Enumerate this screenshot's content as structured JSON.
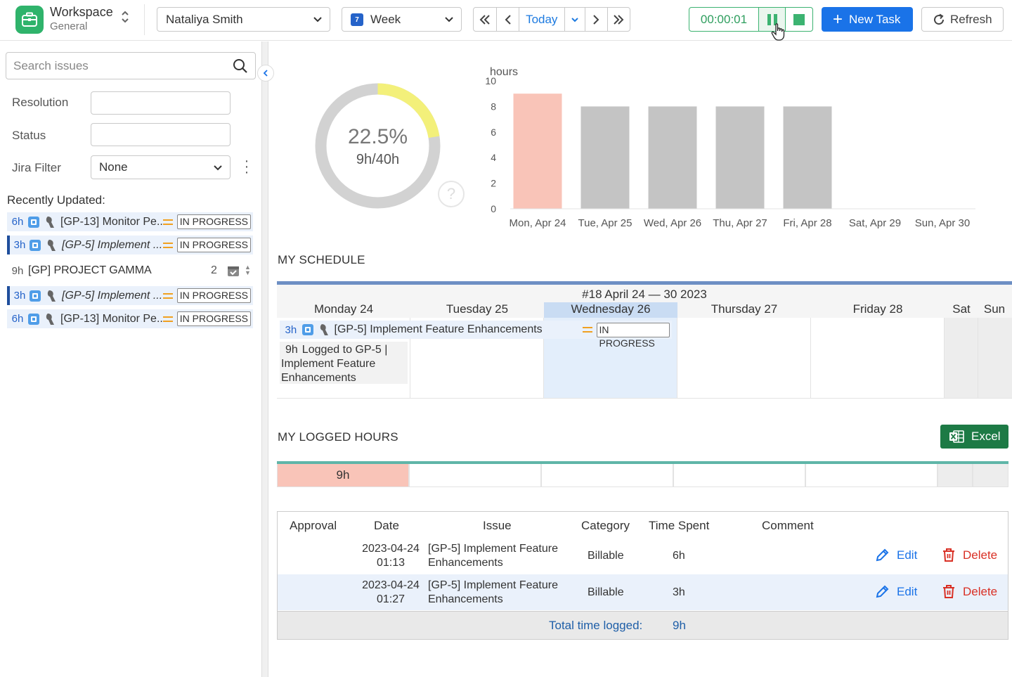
{
  "workspace": {
    "title": "Workspace",
    "subtitle": "General"
  },
  "toolbar": {
    "user": "Nataliya Smith",
    "period": "Week",
    "period_icon_day": "7",
    "today": "Today",
    "timer": "00:00:01",
    "new_task": "New Task",
    "refresh": "Refresh"
  },
  "sidebar": {
    "search_placeholder": "Search issues",
    "filters": {
      "resolution_label": "Resolution",
      "status_label": "Status",
      "jira_filter_label": "Jira Filter",
      "jira_filter_value": "None"
    },
    "recent_title": "Recently Updated:",
    "items": [
      {
        "duration": "6h",
        "name": "[GP-13] Monitor Pe...",
        "status": "IN PROGRESS",
        "italic": false,
        "active": false
      },
      {
        "duration": "3h",
        "name": "[GP-5] Implement ...",
        "status": "IN PROGRESS",
        "italic": true,
        "active": true
      },
      {
        "duration": "3h",
        "name": "[GP-5] Implement ...",
        "status": "IN PROGRESS",
        "italic": true,
        "active": true
      },
      {
        "duration": "6h",
        "name": "[GP-13] Monitor Pe...",
        "status": "IN PROGRESS",
        "italic": false,
        "active": false
      }
    ],
    "project": {
      "duration": "9h",
      "name": "[GP] PROJECT GAMMA",
      "count": "2"
    }
  },
  "summary": {
    "percent": "22.5%",
    "ratio": "9h/40h",
    "fraction": 0.225,
    "help": "?"
  },
  "chart_data": {
    "type": "bar",
    "ylabel": "hours",
    "ylim": [
      0,
      10
    ],
    "yticks": [
      0,
      2,
      4,
      6,
      8,
      10
    ],
    "categories": [
      "Mon, Apr 24",
      "Tue, Apr 25",
      "Wed, Apr 26",
      "Thu, Apr 27",
      "Fri, Apr 28",
      "Sat, Apr 29",
      "Sun, Apr 30"
    ],
    "values": [
      9,
      8,
      8,
      8,
      8,
      0,
      0
    ],
    "colors": [
      "#f9c4b8",
      "#c4c4c4",
      "#c4c4c4",
      "#c4c4c4",
      "#c4c4c4",
      "#c4c4c4",
      "#c4c4c4"
    ]
  },
  "schedule": {
    "title": "MY SCHEDULE",
    "week_label": "#18 April 24 — 30 2023",
    "days": [
      "Monday 24",
      "Tuesday 25",
      "Wednesday 26",
      "Thursday 27",
      "Friday 28",
      "Sat",
      "Sun"
    ],
    "task": {
      "duration": "3h",
      "name": "[GP-5] Implement Feature Enhancements",
      "status": "IN PROGRESS"
    },
    "logged_note_duration": "9h",
    "logged_note_text": "Logged to GP-5 | Implement Feature Enhancements"
  },
  "logged": {
    "title": "MY LOGGED HOURS",
    "excel": "Excel",
    "cells": [
      "9h",
      "",
      "",
      "",
      "",
      "",
      ""
    ]
  },
  "table": {
    "headers": {
      "approval": "Approval",
      "date": "Date",
      "issue": "Issue",
      "category": "Category",
      "time": "Time Spent",
      "comment": "Comment"
    },
    "rows": [
      {
        "date": "2023-04-24",
        "time_of_day": "01:13",
        "issue_line1": "[GP-5] Implement Feature",
        "issue_line2": "Enhancements",
        "category": "Billable",
        "spent": "6h",
        "edit": "Edit",
        "delete": "Delete"
      },
      {
        "date": "2023-04-24",
        "time_of_day": "01:27",
        "issue_line1": "[GP-5] Implement Feature",
        "issue_line2": "Enhancements",
        "category": "Billable",
        "spent": "3h",
        "edit": "Edit",
        "delete": "Delete"
      }
    ],
    "total_label": "Total time logged:",
    "total_value": "9h"
  }
}
